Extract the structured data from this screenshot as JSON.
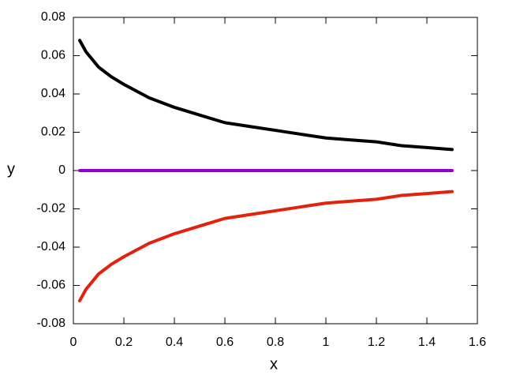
{
  "chart_data": {
    "type": "line",
    "xlabel": "x",
    "ylabel": "y",
    "x": [
      0.025,
      0.05,
      0.1,
      0.15,
      0.2,
      0.3,
      0.4,
      0.5,
      0.6,
      0.7,
      0.8,
      0.9,
      1.0,
      1.1,
      1.2,
      1.3,
      1.4,
      1.5
    ],
    "series": [
      {
        "color": "#000000",
        "values": [
          0.068,
          0.062,
          0.054,
          0.049,
          0.045,
          0.038,
          0.033,
          0.029,
          0.025,
          0.023,
          0.021,
          0.019,
          0.017,
          0.016,
          0.015,
          0.013,
          0.012,
          0.011
        ]
      },
      {
        "color": "#9400d3",
        "values": [
          0,
          0,
          0,
          0,
          0,
          0,
          0,
          0,
          0,
          0,
          0,
          0,
          0,
          0,
          0,
          0,
          0,
          0
        ]
      },
      {
        "color": "#e3220e",
        "values": [
          -0.068,
          -0.062,
          -0.054,
          -0.049,
          -0.045,
          -0.038,
          -0.033,
          -0.029,
          -0.025,
          -0.023,
          -0.021,
          -0.019,
          -0.017,
          -0.016,
          -0.015,
          -0.013,
          -0.012,
          -0.011
        ]
      }
    ],
    "xlim": [
      0,
      1.6
    ],
    "xticks": [
      0,
      0.2,
      0.4,
      0.6,
      0.8,
      1,
      1.2,
      1.4,
      1.6
    ],
    "ylim": [
      -0.08,
      0.08
    ],
    "yticks": [
      -0.08,
      -0.06,
      -0.04,
      -0.02,
      0,
      0.02,
      0.04,
      0.06,
      0.08
    ],
    "grid": false
  }
}
